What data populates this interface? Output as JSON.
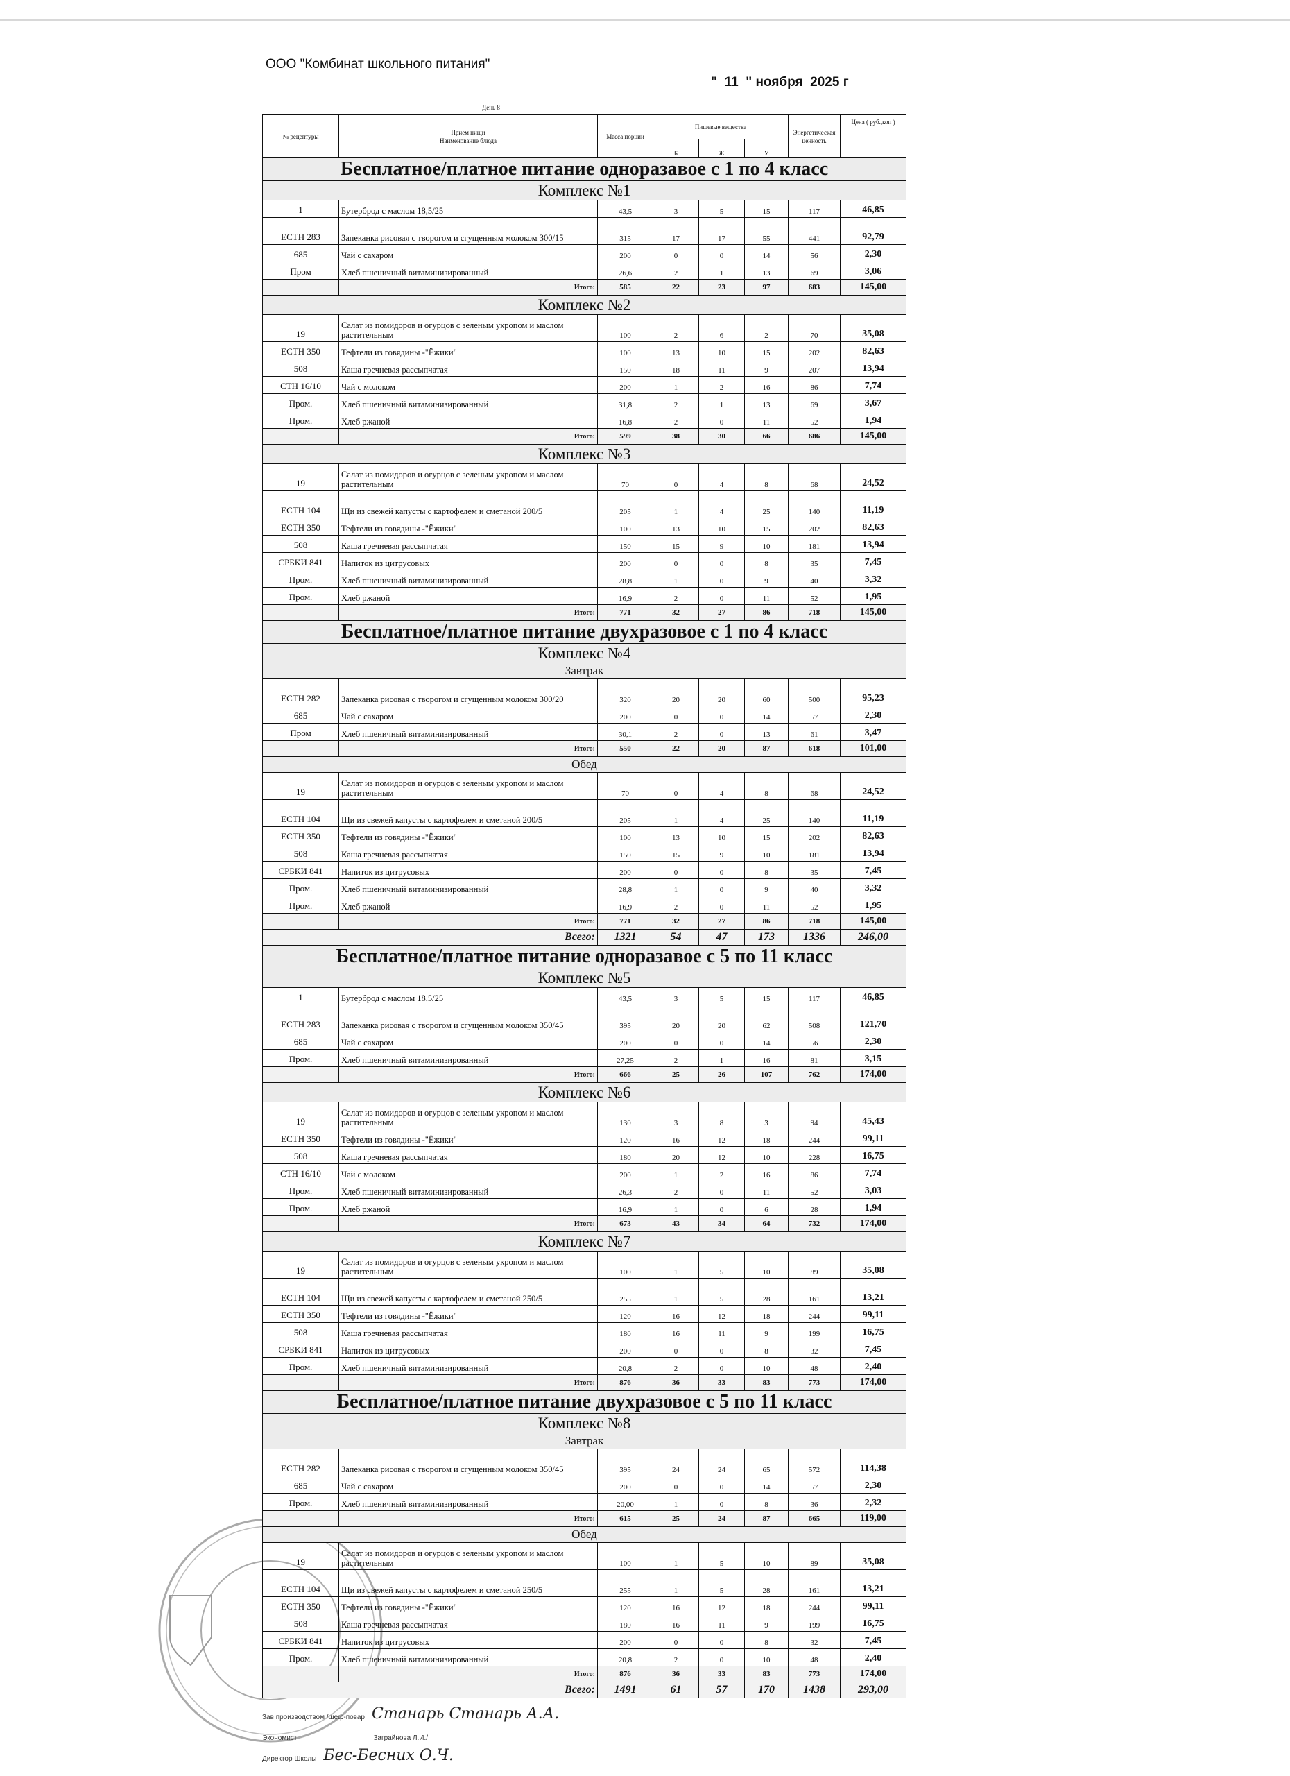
{
  "header": {
    "org": "ООО \"Комбинат школьного питания\"",
    "date": "\"  11  \" ноября  2025 г",
    "day_label": "День 8"
  },
  "columns": {
    "recipe": "№ рецептуры",
    "meal": "Прием пищи",
    "dish": "Наименование блюда",
    "mass": "Масса порции",
    "nutrients": "Пищевые вещества",
    "b": "Б",
    "zh": "Ж",
    "u": "У",
    "energy": "Энергетическая ценность",
    "price": "Цена ( руб.,коп )"
  },
  "labels": {
    "total": "Итого:",
    "grand_total": "Всего:"
  },
  "sections": [
    {
      "title": "Бесплатное/платное питание одноразавое  с 1 по 4 класс",
      "complexes": [
        {
          "title": "Комплекс №1",
          "meals": [
            {
              "title": "",
              "items": [
                [
                  "1",
                  "Бутерброд с маслом 18,5/25",
                  "43,5",
                  "3",
                  "5",
                  "15",
                  "117",
                  "46,85"
                ],
                [
                  "ЕСТН 283",
                  "Запеканка рисовая с творогом и сгущенным молоком 300/15",
                  "315",
                  "17",
                  "17",
                  "55",
                  "441",
                  "92,79"
                ],
                [
                  "685",
                  "Чай с сахаром",
                  "200",
                  "0",
                  "0",
                  "14",
                  "56",
                  "2,30"
                ],
                [
                  "Пром",
                  "Хлеб пшеничный витаминизированный",
                  "26,6",
                  "2",
                  "1",
                  "13",
                  "69",
                  "3,06"
                ]
              ],
              "total": [
                "585",
                "22",
                "23",
                "97",
                "683",
                "145,00"
              ]
            }
          ]
        },
        {
          "title": "Комплекс №2",
          "meals": [
            {
              "title": "",
              "items": [
                [
                  "19",
                  "Салат из помидоров и огурцов с зеленым укропом и маслом растительным",
                  "100",
                  "2",
                  "6",
                  "2",
                  "70",
                  "35,08"
                ],
                [
                  "ЕСТН 350",
                  "Тефтели из говядины -\"Ёжики\"",
                  "100",
                  "13",
                  "10",
                  "15",
                  "202",
                  "82,63"
                ],
                [
                  "508",
                  "Каша гречневая рассыпчатая",
                  "150",
                  "18",
                  "11",
                  "9",
                  "207",
                  "13,94"
                ],
                [
                  "СТН 16/10",
                  "Чай с молоком",
                  "200",
                  "1",
                  "2",
                  "16",
                  "86",
                  "7,74"
                ],
                [
                  "Пром.",
                  "Хлеб пшеничный витаминизированный",
                  "31,8",
                  "2",
                  "1",
                  "13",
                  "69",
                  "3,67"
                ],
                [
                  "Пром.",
                  "Хлеб ржаной",
                  "16,8",
                  "2",
                  "0",
                  "11",
                  "52",
                  "1,94"
                ]
              ],
              "total": [
                "599",
                "38",
                "30",
                "66",
                "686",
                "145,00"
              ]
            }
          ]
        },
        {
          "title": "Комплекс №3",
          "meals": [
            {
              "title": "",
              "items": [
                [
                  "19",
                  "Салат из помидоров и огурцов с зеленым укропом и маслом растительным",
                  "70",
                  "0",
                  "4",
                  "8",
                  "68",
                  "24,52"
                ],
                [
                  "ЕСТН 104",
                  "Щи из свежей капусты с картофелем и сметаной 200/5",
                  "205",
                  "1",
                  "4",
                  "25",
                  "140",
                  "11,19"
                ],
                [
                  "ЕСТН 350",
                  "Тефтели из говядины -\"Ёжики\"",
                  "100",
                  "13",
                  "10",
                  "15",
                  "202",
                  "82,63"
                ],
                [
                  "508",
                  "Каша гречневая рассыпчатая",
                  "150",
                  "15",
                  "9",
                  "10",
                  "181",
                  "13,94"
                ],
                [
                  "СРБКИ 841",
                  "Напиток из цитрусовых",
                  "200",
                  "0",
                  "0",
                  "8",
                  "35",
                  "7,45"
                ],
                [
                  "Пром.",
                  "Хлеб пшеничный витаминизированный",
                  "28,8",
                  "1",
                  "0",
                  "9",
                  "40",
                  "3,32"
                ],
                [
                  "Пром.",
                  "Хлеб ржаной",
                  "16,9",
                  "2",
                  "0",
                  "11",
                  "52",
                  "1,95"
                ]
              ],
              "total": [
                "771",
                "32",
                "27",
                "86",
                "718",
                "145,00"
              ]
            }
          ]
        }
      ]
    },
    {
      "title": "Бесплатное/платное питание двухразовое с 1 по 4 класс",
      "complexes": [
        {
          "title": "Комплекс №4",
          "meals": [
            {
              "title": "Завтрак",
              "items": [
                [
                  "ЕСТН 282",
                  "Запеканка рисовая с творогом и сгущенным молоком 300/20",
                  "320",
                  "20",
                  "20",
                  "60",
                  "500",
                  "95,23"
                ],
                [
                  "685",
                  "Чай с сахаром",
                  "200",
                  "0",
                  "0",
                  "14",
                  "57",
                  "2,30"
                ],
                [
                  "Пром",
                  "Хлеб пшеничный витаминизированный",
                  "30,1",
                  "2",
                  "0",
                  "13",
                  "61",
                  "3,47"
                ]
              ],
              "total": [
                "550",
                "22",
                "20",
                "87",
                "618",
                "101,00"
              ]
            },
            {
              "title": "Обед",
              "items": [
                [
                  "19",
                  "Салат из помидоров и огурцов с зеленым укропом и маслом растительным",
                  "70",
                  "0",
                  "4",
                  "8",
                  "68",
                  "24,52"
                ],
                [
                  "ЕСТН 104",
                  "Щи из свежей капусты с картофелем и сметаной 200/5",
                  "205",
                  "1",
                  "4",
                  "25",
                  "140",
                  "11,19"
                ],
                [
                  "ЕСТН 350",
                  "Тефтели из говядины -\"Ёжики\"",
                  "100",
                  "13",
                  "10",
                  "15",
                  "202",
                  "82,63"
                ],
                [
                  "508",
                  "Каша гречневая рассыпчатая",
                  "150",
                  "15",
                  "9",
                  "10",
                  "181",
                  "13,94"
                ],
                [
                  "СРБКИ 841",
                  "Напиток из цитрусовых",
                  "200",
                  "0",
                  "0",
                  "8",
                  "35",
                  "7,45"
                ],
                [
                  "Пром.",
                  "Хлеб пшеничный витаминизированный",
                  "28,8",
                  "1",
                  "0",
                  "9",
                  "40",
                  "3,32"
                ],
                [
                  "Пром.",
                  "Хлеб ржаной",
                  "16,9",
                  "2",
                  "0",
                  "11",
                  "52",
                  "1,95"
                ]
              ],
              "total": [
                "771",
                "32",
                "27",
                "86",
                "718",
                "145,00"
              ]
            }
          ],
          "grand_total": [
            "1321",
            "54",
            "47",
            "173",
            "1336",
            "246,00"
          ]
        }
      ]
    },
    {
      "title": "Бесплатное/платное питание одноразавое  с 5 по 11 класс",
      "complexes": [
        {
          "title": "Комплекс №5",
          "meals": [
            {
              "title": "",
              "items": [
                [
                  "1",
                  "Бутерброд с маслом 18,5/25",
                  "43,5",
                  "3",
                  "5",
                  "15",
                  "117",
                  "46,85"
                ],
                [
                  "ЕСТН 283",
                  "Запеканка рисовая с творогом и сгущенным молоком 350/45",
                  "395",
                  "20",
                  "20",
                  "62",
                  "508",
                  "121,70"
                ],
                [
                  "685",
                  "Чай с сахаром",
                  "200",
                  "0",
                  "0",
                  "14",
                  "56",
                  "2,30"
                ],
                [
                  "Пром.",
                  "Хлеб пшеничный витаминизированный",
                  "27,25",
                  "2",
                  "1",
                  "16",
                  "81",
                  "3,15"
                ]
              ],
              "total": [
                "666",
                "25",
                "26",
                "107",
                "762",
                "174,00"
              ]
            }
          ]
        },
        {
          "title": "Комплекс №6",
          "meals": [
            {
              "title": "",
              "items": [
                [
                  "19",
                  "Салат из помидоров и огурцов с зеленым укропом и маслом растительным",
                  "130",
                  "3",
                  "8",
                  "3",
                  "94",
                  "45,43"
                ],
                [
                  "ЕСТН 350",
                  "Тефтели из говядины -\"Ёжики\"",
                  "120",
                  "16",
                  "12",
                  "18",
                  "244",
                  "99,11"
                ],
                [
                  "508",
                  "Каша гречневая рассыпчатая",
                  "180",
                  "20",
                  "12",
                  "10",
                  "228",
                  "16,75"
                ],
                [
                  "СТН 16/10",
                  "Чай с молоком",
                  "200",
                  "1",
                  "2",
                  "16",
                  "86",
                  "7,74"
                ],
                [
                  "Пром.",
                  "Хлеб пшеничный витаминизированный",
                  "26,3",
                  "2",
                  "0",
                  "11",
                  "52",
                  "3,03"
                ],
                [
                  "Пром.",
                  "Хлеб ржаной",
                  "16,9",
                  "1",
                  "0",
                  "6",
                  "28",
                  "1,94"
                ]
              ],
              "total": [
                "673",
                "43",
                "34",
                "64",
                "732",
                "174,00"
              ]
            }
          ]
        },
        {
          "title": "Комплекс №7",
          "meals": [
            {
              "title": "",
              "items": [
                [
                  "19",
                  "Салат из помидоров и огурцов с зеленым укропом и маслом растительным",
                  "100",
                  "1",
                  "5",
                  "10",
                  "89",
                  "35,08"
                ],
                [
                  "ЕСТН 104",
                  "Щи из свежей капусты с картофелем и сметаной 250/5",
                  "255",
                  "1",
                  "5",
                  "28",
                  "161",
                  "13,21"
                ],
                [
                  "ЕСТН 350",
                  "Тефтели из говядины -\"Ёжики\"",
                  "120",
                  "16",
                  "12",
                  "18",
                  "244",
                  "99,11"
                ],
                [
                  "508",
                  "Каша гречневая рассыпчатая",
                  "180",
                  "16",
                  "11",
                  "9",
                  "199",
                  "16,75"
                ],
                [
                  "СРБКИ 841",
                  "Напиток из цитрусовых",
                  "200",
                  "0",
                  "0",
                  "8",
                  "32",
                  "7,45"
                ],
                [
                  "Пром.",
                  "Хлеб пшеничный витаминизированный",
                  "20,8",
                  "2",
                  "0",
                  "10",
                  "48",
                  "2,40"
                ]
              ],
              "total": [
                "876",
                "36",
                "33",
                "83",
                "773",
                "174,00"
              ]
            }
          ]
        }
      ]
    },
    {
      "title": "Бесплатное/платное питание двухразовое с 5 по 11 класс",
      "complexes": [
        {
          "title": "Комплекс №8",
          "meals": [
            {
              "title": "Завтрак",
              "items": [
                [
                  "ЕСТН 282",
                  "Запеканка рисовая с творогом и сгущенным молоком 350/45",
                  "395",
                  "24",
                  "24",
                  "65",
                  "572",
                  "114,38"
                ],
                [
                  "685",
                  "Чай с сахаром",
                  "200",
                  "0",
                  "0",
                  "14",
                  "57",
                  "2,30"
                ],
                [
                  "Пром.",
                  "Хлеб пшеничный витаминизированный",
                  "20,00",
                  "1",
                  "0",
                  "8",
                  "36",
                  "2,32"
                ]
              ],
              "total": [
                "615",
                "25",
                "24",
                "87",
                "665",
                "119,00"
              ]
            },
            {
              "title": "Обед",
              "items": [
                [
                  "19",
                  "Салат из помидоров и огурцов с зеленым укропом и маслом растительным",
                  "100",
                  "1",
                  "5",
                  "10",
                  "89",
                  "35,08"
                ],
                [
                  "ЕСТН 104",
                  "Щи из свежей капусты с картофелем и сметаной 250/5",
                  "255",
                  "1",
                  "5",
                  "28",
                  "161",
                  "13,21"
                ],
                [
                  "ЕСТН 350",
                  "Тефтели из говядины -\"Ёжики\"",
                  "120",
                  "16",
                  "12",
                  "18",
                  "244",
                  "99,11"
                ],
                [
                  "508",
                  "Каша гречневая рассыпчатая",
                  "180",
                  "16",
                  "11",
                  "9",
                  "199",
                  "16,75"
                ],
                [
                  "СРБКИ 841",
                  "Напиток из цитрусовых",
                  "200",
                  "0",
                  "0",
                  "8",
                  "32",
                  "7,45"
                ],
                [
                  "Пром.",
                  "Хлеб пшеничный витаминизированный",
                  "20,8",
                  "2",
                  "0",
                  "10",
                  "48",
                  "2,40"
                ]
              ],
              "total": [
                "876",
                "36",
                "33",
                "83",
                "773",
                "174,00"
              ]
            }
          ],
          "grand_total": [
            "1491",
            "61",
            "57",
            "170",
            "1438",
            "293,00"
          ]
        }
      ]
    }
  ],
  "signatures": {
    "chef_label": "Зав производством /шеф-повар",
    "economist_label": "Экономист",
    "economist_name": "Заграйнова Л.И./",
    "director_label": "Директор Школы",
    "chef_signature": "Станарь Станарь А.А.",
    "director_signature": "Бес-Бесних О.Ч."
  },
  "stamp": {
    "icon": "round-seal-stamp"
  }
}
